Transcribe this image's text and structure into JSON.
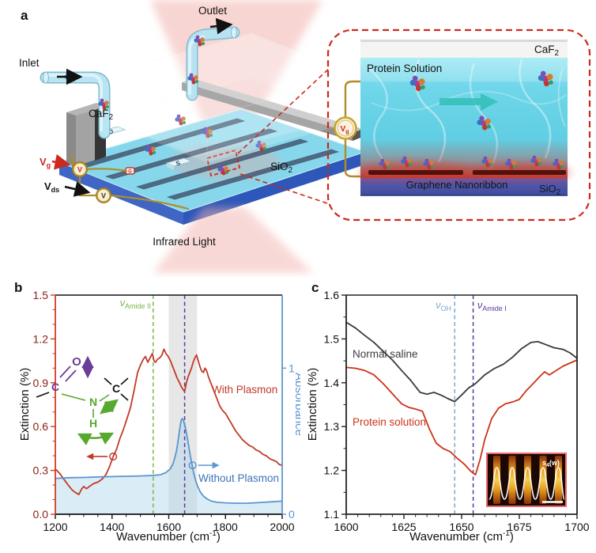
{
  "panel_a": {
    "label": "a",
    "inlet": "Inlet",
    "outlet": "Outlet",
    "caf2": {
      "base": "CaF",
      "sub": "2"
    },
    "sio2": {
      "base": "SiO",
      "sub": "2"
    },
    "vg": {
      "base": "V",
      "sub": "g"
    },
    "vds": {
      "base": "V",
      "sub": "ds"
    },
    "infrared_light": "Infrared Light",
    "electrode_d": "D",
    "electrode_s": "S",
    "gate": "G",
    "meter_letter": "V",
    "inset": {
      "caf2": {
        "base": "CaF",
        "sub": "2"
      },
      "protein_solution": "Protein Solution",
      "graphene_nanoribbon": "Graphene Nanoribbon",
      "sio2": {
        "base": "SiO",
        "sub": "2"
      },
      "vg": {
        "base": "V",
        "sub": "g"
      }
    }
  },
  "chart_data": [
    {
      "id": "b",
      "type": "line",
      "panel_label": "b",
      "xlabel_parts": {
        "pre": "Wavenumber (cm",
        "sup": "-1",
        "post": ")"
      },
      "ylabel_left": "Extinction (%)",
      "ylabel_right": "Absorbance",
      "xlim": [
        1200,
        2000
      ],
      "ylim_left": [
        0.0,
        1.5
      ],
      "x_ticks": [
        1200,
        1400,
        1600,
        1800,
        2000
      ],
      "x_minor_step": 50,
      "y_ticks": [
        0.0,
        0.3,
        0.6,
        0.9,
        1.2,
        1.5
      ],
      "y_minor_step": 0.1,
      "y_tick_decimals": 1,
      "grid": false,
      "legend_position": "inline-annotations",
      "shaded_band": {
        "from": 1600,
        "to": 1700,
        "color": "#c9c9c9",
        "opacity": 0.45
      },
      "vlines": [
        {
          "x": 1545,
          "color": "#7ab648",
          "label": {
            "base": "ν",
            "sub": "Amide II"
          }
        },
        {
          "x": 1656,
          "color": "#5b3a9b",
          "label": null
        }
      ],
      "axis_colors": {
        "top": "#111111",
        "bottom": "#111111",
        "left": "#d23b24",
        "right": "#5b96cf",
        "left_text": "#8b2114",
        "bottom_text": "#111111",
        "right_text": "#5b96cf"
      },
      "right_axis": {
        "ticks": [
          {
            "label": "0",
            "at": 0.0
          },
          {
            "label": "1",
            "at": 1.0
          }
        ]
      },
      "axis_indicators": [
        {
          "series": "With Plasmon",
          "x": 1404,
          "y": 0.395,
          "direction": "left",
          "color": "#c23a27"
        },
        {
          "series": "Without Plasmon",
          "x": 1684,
          "y": 0.335,
          "direction": "right",
          "color": "#5b96cf"
        }
      ],
      "molecule": {
        "o": "O",
        "c1": "C",
        "n": "N",
        "h": "H",
        "c2": "C"
      },
      "series": [
        {
          "name": "With Plasmon",
          "color": "#c23a27",
          "width": 1.8,
          "points": [
            [
              1200,
              0.31
            ],
            [
              1215,
              0.28
            ],
            [
              1230,
              0.24
            ],
            [
              1245,
              0.2
            ],
            [
              1260,
              0.165
            ],
            [
              1270,
              0.15
            ],
            [
              1283,
              0.135
            ],
            [
              1292,
              0.17
            ],
            [
              1300,
              0.19
            ],
            [
              1310,
              0.175
            ],
            [
              1320,
              0.19
            ],
            [
              1335,
              0.21
            ],
            [
              1350,
              0.22
            ],
            [
              1365,
              0.24
            ],
            [
              1378,
              0.27
            ],
            [
              1390,
              0.32
            ],
            [
              1404,
              0.395
            ],
            [
              1415,
              0.44
            ],
            [
              1428,
              0.52
            ],
            [
              1440,
              0.58
            ],
            [
              1452,
              0.65
            ],
            [
              1465,
              0.73
            ],
            [
              1478,
              0.85
            ],
            [
              1490,
              0.97
            ],
            [
              1500,
              1.02
            ],
            [
              1510,
              1.06
            ],
            [
              1518,
              1.08
            ],
            [
              1526,
              1.04
            ],
            [
              1534,
              1.07
            ],
            [
              1542,
              1.1
            ],
            [
              1548,
              1.05
            ],
            [
              1553,
              1.04
            ],
            [
              1560,
              1.06
            ],
            [
              1568,
              1.07
            ],
            [
              1576,
              1.09
            ],
            [
              1583,
              1.13
            ],
            [
              1590,
              1.1
            ],
            [
              1598,
              1.08
            ],
            [
              1606,
              1.05
            ],
            [
              1614,
              1.01
            ],
            [
              1622,
              0.97
            ],
            [
              1630,
              0.93
            ],
            [
              1638,
              0.9
            ],
            [
              1645,
              0.87
            ],
            [
              1652,
              0.85
            ],
            [
              1656,
              0.84
            ],
            [
              1662,
              0.9
            ],
            [
              1668,
              0.94
            ],
            [
              1674,
              0.97
            ],
            [
              1680,
              1.0
            ],
            [
              1686,
              1.04
            ],
            [
              1692,
              1.07
            ],
            [
              1698,
              1.09
            ],
            [
              1704,
              1.05
            ],
            [
              1710,
              1.01
            ],
            [
              1716,
              0.98
            ],
            [
              1722,
              0.97
            ],
            [
              1728,
              1.0
            ],
            [
              1734,
              0.98
            ],
            [
              1740,
              0.94
            ],
            [
              1748,
              0.9
            ],
            [
              1756,
              0.86
            ],
            [
              1764,
              0.82
            ],
            [
              1772,
              0.78
            ],
            [
              1780,
              0.74
            ],
            [
              1790,
              0.71
            ],
            [
              1800,
              0.69
            ],
            [
              1812,
              0.65
            ],
            [
              1824,
              0.61
            ],
            [
              1836,
              0.57
            ],
            [
              1848,
              0.54
            ],
            [
              1860,
              0.51
            ],
            [
              1872,
              0.49
            ],
            [
              1884,
              0.47
            ],
            [
              1896,
              0.46
            ],
            [
              1908,
              0.44
            ],
            [
              1920,
              0.43
            ],
            [
              1932,
              0.41
            ],
            [
              1944,
              0.4
            ],
            [
              1956,
              0.38
            ],
            [
              1968,
              0.37
            ],
            [
              1980,
              0.36
            ],
            [
              1990,
              0.34
            ],
            [
              2000,
              0.335
            ]
          ]
        },
        {
          "name": "Without Plasmon",
          "color": "#5b96cf",
          "width": 1.8,
          "fill": "#aed4ec",
          "fill_opacity": 0.45,
          "points": [
            [
              1200,
              0.245
            ],
            [
              1250,
              0.25
            ],
            [
              1300,
              0.252
            ],
            [
              1350,
              0.255
            ],
            [
              1400,
              0.258
            ],
            [
              1450,
              0.26
            ],
            [
              1500,
              0.262
            ],
            [
              1540,
              0.265
            ],
            [
              1570,
              0.27
            ],
            [
              1590,
              0.285
            ],
            [
              1605,
              0.31
            ],
            [
              1615,
              0.345
            ],
            [
              1622,
              0.39
            ],
            [
              1628,
              0.44
            ],
            [
              1634,
              0.52
            ],
            [
              1640,
              0.6
            ],
            [
              1644,
              0.645
            ],
            [
              1648,
              0.655
            ],
            [
              1652,
              0.64
            ],
            [
              1658,
              0.6
            ],
            [
              1664,
              0.54
            ],
            [
              1670,
              0.47
            ],
            [
              1676,
              0.4
            ],
            [
              1682,
              0.34
            ],
            [
              1688,
              0.28
            ],
            [
              1695,
              0.23
            ],
            [
              1702,
              0.19
            ],
            [
              1712,
              0.15
            ],
            [
              1722,
              0.125
            ],
            [
              1735,
              0.105
            ],
            [
              1750,
              0.09
            ],
            [
              1770,
              0.082
            ],
            [
              1800,
              0.078
            ],
            [
              1840,
              0.075
            ],
            [
              1880,
              0.076
            ],
            [
              1920,
              0.08
            ],
            [
              1960,
              0.085
            ],
            [
              2000,
              0.09
            ]
          ]
        }
      ]
    },
    {
      "id": "c",
      "type": "line",
      "panel_label": "c",
      "xlabel_parts": {
        "pre": "Wavenumber (cm",
        "sup": "-1",
        "post": ")"
      },
      "ylabel_left": "Extinction (%)",
      "xlim": [
        1600,
        1700
      ],
      "ylim_left": [
        1.1,
        1.6
      ],
      "x_ticks": [
        1600,
        1625,
        1650,
        1675,
        1700
      ],
      "x_minor_step": 5,
      "y_ticks": [
        1.1,
        1.2,
        1.3,
        1.4,
        1.5,
        1.6
      ],
      "y_minor_step": 0.05,
      "y_tick_decimals": 1,
      "grid": false,
      "legend_position": "inline-annotations",
      "vlines": [
        {
          "x": 1647,
          "color": "#7aa7d8",
          "label": {
            "base": "ν",
            "sub": "OH"
          }
        },
        {
          "x": 1655,
          "color": "#5b3a9b",
          "label": {
            "base": "ν",
            "sub": "Amide I"
          }
        }
      ],
      "axis_colors": {
        "top": "#222222",
        "bottom": "#222222",
        "left": "#222222",
        "right": "#222222",
        "left_text": "#111111",
        "bottom_text": "#111111"
      },
      "inset": {
        "label": {
          "base": "s",
          "sub": "4",
          "rest": "(w)"
        }
      },
      "series": [
        {
          "name": "Normal saline",
          "color": "#3a3a3a",
          "width": 1.8,
          "points": [
            [
              1600,
              1.538
            ],
            [
              1604,
              1.525
            ],
            [
              1608,
              1.508
            ],
            [
              1612,
              1.492
            ],
            [
              1616,
              1.472
            ],
            [
              1620,
              1.452
            ],
            [
              1624,
              1.428
            ],
            [
              1628,
              1.405
            ],
            [
              1632,
              1.378
            ],
            [
              1635,
              1.374
            ],
            [
              1638,
              1.378
            ],
            [
              1641,
              1.372
            ],
            [
              1644,
              1.364
            ],
            [
              1647,
              1.357
            ],
            [
              1650,
              1.372
            ],
            [
              1653,
              1.388
            ],
            [
              1656,
              1.398
            ],
            [
              1660,
              1.418
            ],
            [
              1664,
              1.432
            ],
            [
              1668,
              1.442
            ],
            [
              1672,
              1.458
            ],
            [
              1676,
              1.478
            ],
            [
              1680,
              1.492
            ],
            [
              1683,
              1.494
            ],
            [
              1686,
              1.488
            ],
            [
              1690,
              1.48
            ],
            [
              1694,
              1.476
            ],
            [
              1697,
              1.468
            ],
            [
              1700,
              1.456
            ]
          ]
        },
        {
          "name": "Protein solution",
          "color": "#cc3318",
          "width": 1.8,
          "points": [
            [
              1600,
              1.435
            ],
            [
              1604,
              1.433
            ],
            [
              1608,
              1.428
            ],
            [
              1612,
              1.418
            ],
            [
              1616,
              1.398
            ],
            [
              1620,
              1.375
            ],
            [
              1624,
              1.352
            ],
            [
              1627,
              1.344
            ],
            [
              1630,
              1.34
            ],
            [
              1633,
              1.335
            ],
            [
              1636,
              1.295
            ],
            [
              1639,
              1.262
            ],
            [
              1642,
              1.25
            ],
            [
              1645,
              1.243
            ],
            [
              1648,
              1.228
            ],
            [
              1651,
              1.215
            ],
            [
              1654,
              1.198
            ],
            [
              1656,
              1.19
            ],
            [
              1658,
              1.225
            ],
            [
              1660,
              1.27
            ],
            [
              1663,
              1.318
            ],
            [
              1666,
              1.342
            ],
            [
              1669,
              1.352
            ],
            [
              1672,
              1.356
            ],
            [
              1675,
              1.362
            ],
            [
              1678,
              1.382
            ],
            [
              1681,
              1.398
            ],
            [
              1684,
              1.415
            ],
            [
              1686,
              1.425
            ],
            [
              1688,
              1.418
            ],
            [
              1691,
              1.428
            ],
            [
              1694,
              1.438
            ],
            [
              1697,
              1.445
            ],
            [
              1700,
              1.452
            ]
          ]
        }
      ]
    }
  ]
}
